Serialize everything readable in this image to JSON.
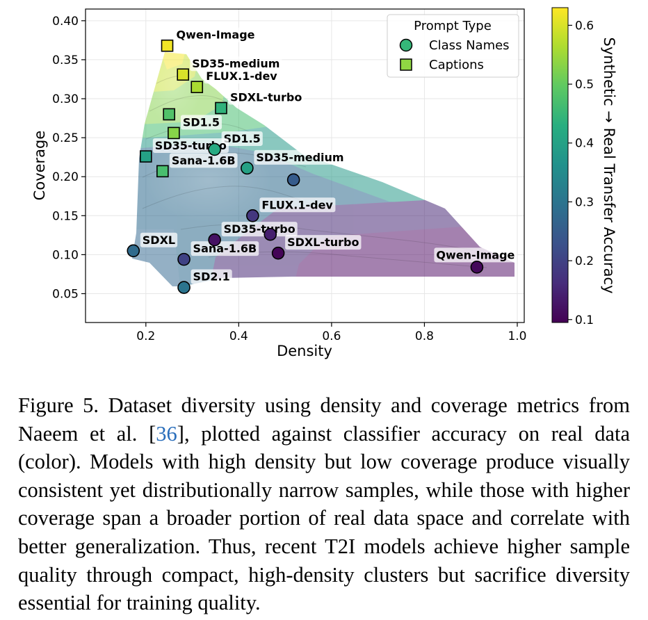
{
  "chart_data": {
    "type": "scatter",
    "xlabel": "Density",
    "ylabel": "Coverage",
    "xlim": [
      0.07,
      1.015
    ],
    "ylim": [
      0.013,
      0.415
    ],
    "x_ticks": [
      {
        "value": 0.2,
        "label": "0.2"
      },
      {
        "value": 0.4,
        "label": "0.4"
      },
      {
        "value": 0.6,
        "label": "0.6"
      },
      {
        "value": 0.8,
        "label": "0.8"
      },
      {
        "value": 1.0,
        "label": "1.0"
      }
    ],
    "y_ticks": [
      {
        "value": 0.05,
        "label": "0.05"
      },
      {
        "value": 0.1,
        "label": "0.10"
      },
      {
        "value": 0.15,
        "label": "0.15"
      },
      {
        "value": 0.2,
        "label": "0.20"
      },
      {
        "value": 0.25,
        "label": "0.25"
      },
      {
        "value": 0.3,
        "label": "0.30"
      },
      {
        "value": 0.35,
        "label": "0.35"
      },
      {
        "value": 0.4,
        "label": "0.40"
      }
    ],
    "grid": true,
    "background": "contour-filled",
    "colorbar": {
      "label": "Synthetic → Real Transfer Accuracy",
      "colormap": "viridis",
      "range": [
        0.095,
        0.63
      ],
      "ticks": [
        {
          "value": 0.1,
          "label": "0.1"
        },
        {
          "value": 0.2,
          "label": "0.2"
        },
        {
          "value": 0.3,
          "label": "0.3"
        },
        {
          "value": 0.4,
          "label": "0.4"
        },
        {
          "value": 0.5,
          "label": "0.5"
        },
        {
          "value": 0.6,
          "label": "0.6"
        }
      ]
    },
    "legend": {
      "title": "Prompt Type",
      "position": "top-right",
      "entries": [
        {
          "label": "Class Names",
          "marker": "circle",
          "color": "#35b779"
        },
        {
          "label": "Captions",
          "marker": "square",
          "color": "#90d743"
        }
      ]
    },
    "series": [
      {
        "name": "Class Names",
        "marker": "circle",
        "points": [
          {
            "label": "SD1.5",
            "x": 0.348,
            "y": 0.235,
            "acc": 0.42
          },
          {
            "label": "SD35-medium",
            "x": 0.418,
            "y": 0.211,
            "acc": 0.4
          },
          {
            "label": "",
            "x": 0.518,
            "y": 0.196,
            "acc": 0.25
          },
          {
            "label": "FLUX.1-dev",
            "x": 0.43,
            "y": 0.15,
            "acc": 0.18
          },
          {
            "label": "",
            "x": 0.468,
            "y": 0.126,
            "acc": 0.14
          },
          {
            "label": "SD35-turbo",
            "x": 0.348,
            "y": 0.119,
            "acc": 0.12
          },
          {
            "label": "SDXL-turbo",
            "x": 0.485,
            "y": 0.102,
            "acc": 0.1
          },
          {
            "label": "SDXL",
            "x": 0.173,
            "y": 0.105,
            "acc": 0.28
          },
          {
            "label": "Sana-1.6B",
            "x": 0.282,
            "y": 0.094,
            "acc": 0.2
          },
          {
            "label": "SD2.1",
            "x": 0.282,
            "y": 0.058,
            "acc": 0.3
          },
          {
            "label": "Qwen-Image",
            "x": 0.913,
            "y": 0.084,
            "acc": 0.105
          }
        ]
      },
      {
        "name": "Captions",
        "marker": "square",
        "points": [
          {
            "label": "Qwen-Image",
            "x": 0.246,
            "y": 0.368,
            "acc": 0.62
          },
          {
            "label": "SD35-medium",
            "x": 0.28,
            "y": 0.331,
            "acc": 0.6
          },
          {
            "label": "FLUX.1-dev",
            "x": 0.31,
            "y": 0.315,
            "acc": 0.56
          },
          {
            "label": "SDXL-turbo",
            "x": 0.362,
            "y": 0.288,
            "acc": 0.44
          },
          {
            "label": "",
            "x": 0.25,
            "y": 0.28,
            "acc": 0.48
          },
          {
            "label": "SD1.5",
            "x": 0.26,
            "y": 0.256,
            "acc": 0.53
          },
          {
            "label": "SD35-turbo",
            "x": 0.2,
            "y": 0.226,
            "acc": 0.4
          },
          {
            "label": "Sana-1.6B",
            "x": 0.236,
            "y": 0.207,
            "acc": 0.47
          }
        ]
      }
    ]
  },
  "caption": {
    "prefix": "Figure 5.  Dataset diversity using density and coverage metrics from Naeem et al. [",
    "citation": "36",
    "suffix": "], plotted against classifier accuracy on real data (color). Models with high density but low coverage produce visually consistent yet distributionally narrow samples, while those with higher coverage span a broader portion of real data space and correlate with better generalization. Thus, recent T2I models achieve higher sample quality through compact, high-density clusters but sacrifice diversity essential for training quality."
  }
}
